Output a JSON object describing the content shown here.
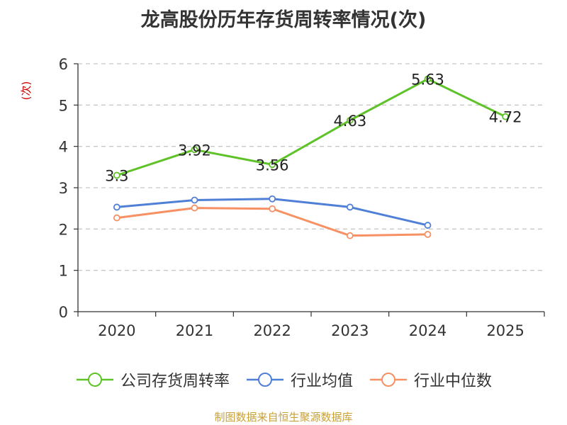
{
  "chart_data": {
    "type": "line",
    "title": "龙高股份历年存货周转率情况(次)",
    "ylabel": "(次)",
    "xlabel": "",
    "categories": [
      "2020",
      "2021",
      "2022",
      "2023",
      "2024",
      "2025"
    ],
    "ylim": [
      0,
      6
    ],
    "yticks": [
      0,
      1,
      2,
      3,
      4,
      5,
      6
    ],
    "grid": true,
    "legend_position": "bottom",
    "series": [
      {
        "name": "公司存货周转率",
        "color": "#5ec228",
        "values": [
          3.3,
          3.92,
          3.56,
          4.63,
          5.63,
          4.72
        ],
        "labels": [
          "3.3",
          "3.92",
          "3.56",
          "4.63",
          "5.63",
          "4.72"
        ]
      },
      {
        "name": "行业均值",
        "color": "#4f7fd6",
        "values": [
          2.53,
          2.7,
          2.73,
          2.53,
          2.09,
          null
        ]
      },
      {
        "name": "行业中位数",
        "color": "#f79163",
        "values": [
          2.27,
          2.51,
          2.49,
          1.84,
          1.87,
          null
        ]
      }
    ]
  },
  "source": "制图数据来自恒生聚源数据库"
}
